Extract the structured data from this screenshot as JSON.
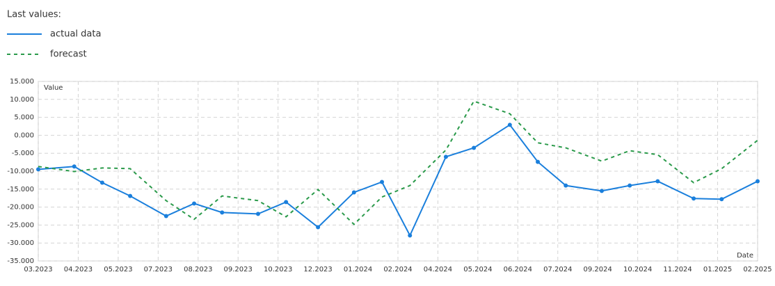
{
  "chart_data": {
    "type": "line",
    "legend_title": "Last values:",
    "y_label": "Value",
    "x_label": "Date",
    "x": [
      0,
      0.9,
      1.6,
      2.3,
      3.2,
      3.9,
      4.6,
      5.5,
      6.2,
      7.0,
      7.9,
      8.6,
      9.3,
      10.2,
      10.9,
      11.8,
      12.5,
      13.2,
      14.1,
      14.8,
      15.5,
      16.4,
      17.1,
      18
    ],
    "series": [
      {
        "name": "actual data",
        "color": "#1a7fdc",
        "style": "solid",
        "markers": true,
        "values": [
          -9.5,
          -8.7,
          -13.2,
          -16.9,
          -22.5,
          -19.0,
          -21.5,
          -21.9,
          -18.6,
          -25.6,
          -15.9,
          -13.0,
          -27.9,
          -6.0,
          -3.5,
          2.9,
          -7.4,
          -14.0,
          -15.5,
          -14.0,
          -12.8,
          -17.6,
          -17.8,
          -12.8
        ]
      },
      {
        "name": "forecast",
        "color": "#2a9a4a",
        "style": "dashed",
        "markers": false,
        "values": [
          -8.7,
          -10.1,
          -9.1,
          -9.3,
          -18.2,
          -23.4,
          -16.9,
          -18.2,
          -22.7,
          -15.1,
          -24.8,
          -17.2,
          -14.0,
          -4.1,
          9.5,
          6.0,
          -2.1,
          -3.5,
          -7.2,
          -4.3,
          -5.4,
          -13.2,
          -9.3,
          -1.4
        ]
      }
    ],
    "xlim": [
      0,
      18
    ],
    "xticks": [
      {
        "value": 0,
        "label": "03.2023"
      },
      {
        "value": 1,
        "label": "04.2023"
      },
      {
        "value": 2,
        "label": "05.2023"
      },
      {
        "value": 3,
        "label": "07.2023"
      },
      {
        "value": 4,
        "label": "08.2023"
      },
      {
        "value": 5,
        "label": "09.2023"
      },
      {
        "value": 6,
        "label": "10.2023"
      },
      {
        "value": 7,
        "label": "12.2023"
      },
      {
        "value": 8,
        "label": "01.2024"
      },
      {
        "value": 9,
        "label": "02.2024"
      },
      {
        "value": 10,
        "label": "04.2024"
      },
      {
        "value": 11,
        "label": "05.2024"
      },
      {
        "value": 12,
        "label": "06.2024"
      },
      {
        "value": 13,
        "label": "07.2024"
      },
      {
        "value": 14,
        "label": "09.2024"
      },
      {
        "value": 15,
        "label": "10.2024"
      },
      {
        "value": 16,
        "label": "11.2024"
      },
      {
        "value": 17,
        "label": "01.2025"
      },
      {
        "value": 18,
        "label": "02.2025"
      }
    ],
    "ylim": [
      -35,
      15
    ],
    "yticks": [
      {
        "value": 15,
        "label": "15.000"
      },
      {
        "value": 10,
        "label": "10.000"
      },
      {
        "value": 5,
        "label": "5.000"
      },
      {
        "value": 0,
        "label": "0.000"
      },
      {
        "value": -5,
        "label": "-5.000"
      },
      {
        "value": -10,
        "label": "-10.000"
      },
      {
        "value": -15,
        "label": "-15.000"
      },
      {
        "value": -20,
        "label": "-20.000"
      },
      {
        "value": -25,
        "label": "-25.000"
      },
      {
        "value": -30,
        "label": "-30.000"
      },
      {
        "value": -35,
        "label": "-35.000"
      }
    ],
    "grid": true
  }
}
